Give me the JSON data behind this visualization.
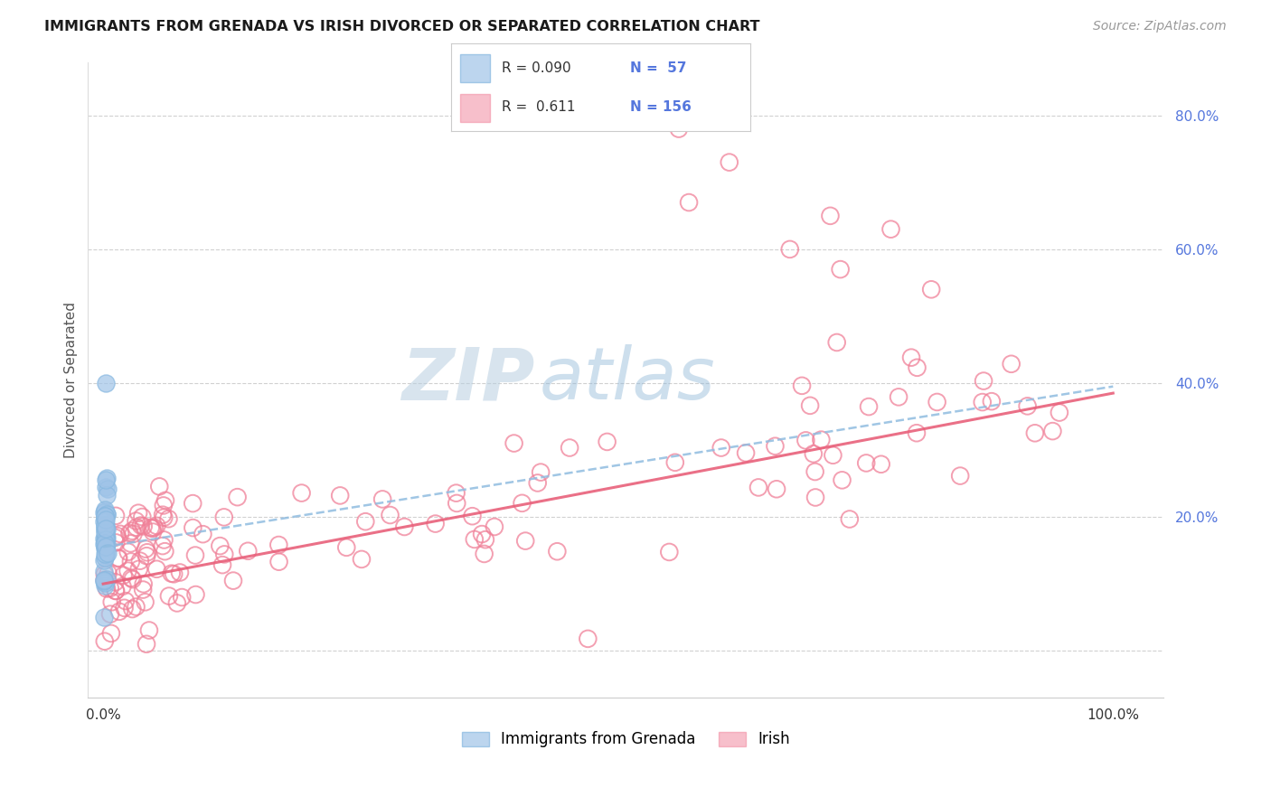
{
  "title": "IMMIGRANTS FROM GRENADA VS IRISH DIVORCED OR SEPARATED CORRELATION CHART",
  "source": "Source: ZipAtlas.com",
  "ylabel": "Divorced or Separated",
  "blue_color": "#87b8e0",
  "blue_face_color": "#a0c4e8",
  "pink_color": "#f08098",
  "pink_line_color": "#e8607a",
  "blue_line_color": "#90bce0",
  "watermark_zip": "ZIP",
  "watermark_atlas": "atlas",
  "legend_R1": "R = 0.090",
  "legend_N1": "N =  57",
  "legend_R2": "R =  0.611",
  "legend_N2": "N = 156",
  "label1": "Immigrants from Grenada",
  "label2": "Irish",
  "ytick_color": "#5577dd",
  "right_label_color": "#5577dd"
}
